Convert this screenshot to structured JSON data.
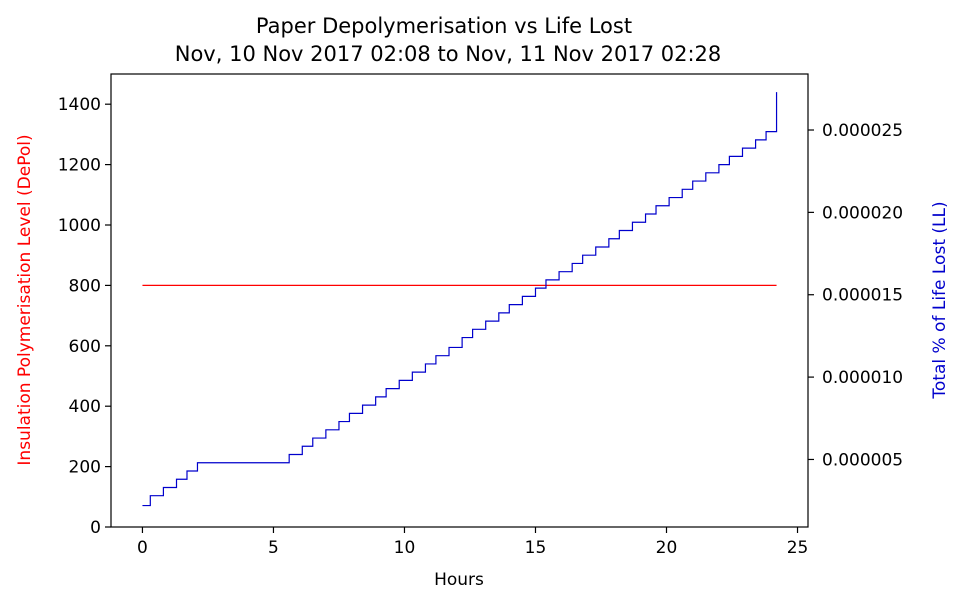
{
  "chart_data": {
    "type": "line",
    "title": "Paper Depolymerisation vs Life Lost",
    "subtitle": "Nov, 10 Nov 2017 02:08 to Nov, 11 Nov 2017 02:28",
    "xlabel": "Hours",
    "ylabel_left": "Insulation Polymerisation Level (DePol)",
    "ylabel_right": "Total % of Life Lost (LL)",
    "xlim": [
      -1.2,
      25.4
    ],
    "ylim_left": [
      0,
      1500
    ],
    "ylim_right": [
      9e-07,
      2.84e-05
    ],
    "x_ticks": [
      0,
      5,
      10,
      15,
      20,
      25
    ],
    "x_tick_labels": [
      "0",
      "5",
      "10",
      "15",
      "20",
      "25"
    ],
    "y_left_ticks": [
      0,
      200,
      400,
      600,
      800,
      1000,
      1200,
      1400
    ],
    "y_left_tick_labels": [
      "0",
      "200",
      "400",
      "600",
      "800",
      "1000",
      "1200",
      "1400"
    ],
    "y_right_ticks": [
      5e-06,
      1e-05,
      1.5e-05,
      2e-05,
      2.5e-05
    ],
    "y_right_tick_labels": [
      "0.000005",
      "0.000010",
      "0.000015",
      "0.000020",
      "0.000025"
    ],
    "grid": false,
    "legend": "none",
    "colors": {
      "depol": "#ff0000",
      "life_lost": "#0000cc",
      "axis_left_label": "#ff0000",
      "axis_right_label": "#0000cc"
    },
    "series": [
      {
        "axis": "left",
        "x": [
          0,
          24.2
        ],
        "y": [
          800,
          800
        ]
      },
      {
        "axis": "right",
        "step": true,
        "x": [
          0,
          0.3,
          0.8,
          1.3,
          1.7,
          2.1,
          5.1,
          5.6,
          6.1,
          6.5,
          7.0,
          7.5,
          7.9,
          8.4,
          8.9,
          9.3,
          9.8,
          10.3,
          10.8,
          11.2,
          11.7,
          12.2,
          12.6,
          13.1,
          13.6,
          14.0,
          14.5,
          15.0,
          15.4,
          15.9,
          16.4,
          16.8,
          17.3,
          17.8,
          18.2,
          18.7,
          19.2,
          19.6,
          20.1,
          20.6,
          21.0,
          21.5,
          22.0,
          22.4,
          22.9,
          23.4,
          23.8,
          24.2
        ],
        "y": [
          2.2e-06,
          2.8e-06,
          3.3e-06,
          3.8e-06,
          4.3e-06,
          4.8e-06,
          4.8e-06,
          5.3e-06,
          5.8e-06,
          6.3e-06,
          6.8e-06,
          7.3e-06,
          7.8e-06,
          8.3e-06,
          8.8e-06,
          9.3e-06,
          9.8e-06,
          1.03e-05,
          1.08e-05,
          1.13e-05,
          1.18e-05,
          1.24e-05,
          1.29e-05,
          1.34e-05,
          1.39e-05,
          1.44e-05,
          1.49e-05,
          1.54e-05,
          1.59e-05,
          1.64e-05,
          1.69e-05,
          1.74e-05,
          1.79e-05,
          1.84e-05,
          1.89e-05,
          1.94e-05,
          1.99e-05,
          2.04e-05,
          2.09e-05,
          2.14e-05,
          2.19e-05,
          2.24e-05,
          2.29e-05,
          2.34e-05,
          2.39e-05,
          2.44e-05,
          2.49e-05,
          2.73e-05
        ]
      }
    ]
  }
}
